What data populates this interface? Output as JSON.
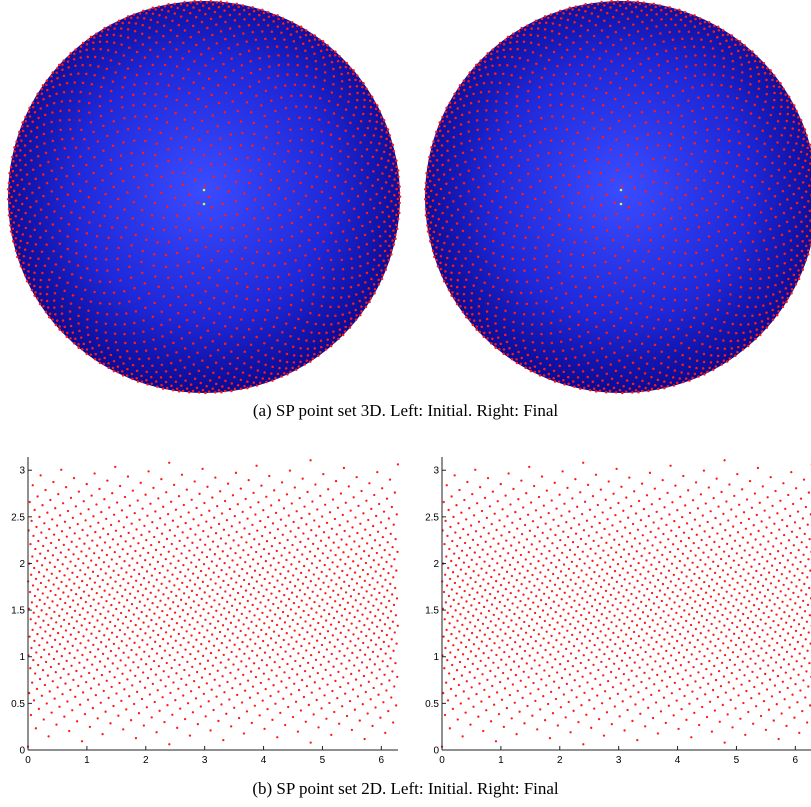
{
  "captions": {
    "a": "(a) SP point set 3D. Left: Initial. Right: Final",
    "b": "(b) SP point set 2D. Left: Initial. Right: Final"
  },
  "colors": {
    "point": "#ff1a1a",
    "sphere_center": "#3a4cff",
    "sphere_edge": "#06068a",
    "pole_marker": "#c8ff3c",
    "axis": "#222222"
  },
  "chart_data": [
    {
      "id": "sphere-initial",
      "type": "scatter",
      "description_kind": "sphere-3d",
      "title": "",
      "points_per_ring_approx": 60,
      "caption_ref": "a",
      "panel": "left"
    },
    {
      "id": "sphere-final",
      "type": "scatter",
      "description_kind": "sphere-3d",
      "title": "",
      "points_per_ring_approx": 60,
      "caption_ref": "a",
      "panel": "right"
    },
    {
      "id": "plane-initial",
      "type": "scatter",
      "title": "",
      "xlabel": "",
      "ylabel": "",
      "xlim": [
        0,
        6.283
      ],
      "ylim": [
        0,
        3.1416
      ],
      "xticks": [
        0,
        1,
        2,
        3,
        4,
        5,
        6
      ],
      "yticks": [
        0,
        0.5,
        1,
        1.5,
        2,
        2.5,
        3
      ],
      "ytick_labels": [
        "0",
        "0.5",
        "1",
        "1.5",
        "2",
        "2.5",
        "3"
      ],
      "xtick_labels": [
        "0",
        "1",
        "2",
        "3",
        "4",
        "5",
        "6"
      ],
      "n_points": 1600,
      "caption_ref": "b",
      "panel": "left"
    },
    {
      "id": "plane-final",
      "type": "scatter",
      "title": "",
      "xlabel": "",
      "ylabel": "",
      "xlim": [
        0,
        6.283
      ],
      "ylim": [
        0,
        3.1416
      ],
      "xticks": [
        0,
        1,
        2,
        3,
        4,
        5,
        6
      ],
      "yticks": [
        0,
        0.5,
        1,
        1.5,
        2,
        2.5,
        3
      ],
      "ytick_labels": [
        "0",
        "0.5",
        "1",
        "1.5",
        "2",
        "2.5",
        "3"
      ],
      "xtick_labels": [
        "0",
        "1",
        "2",
        "3",
        "4",
        "5",
        "6"
      ],
      "n_points": 1600,
      "caption_ref": "b",
      "panel": "right"
    }
  ]
}
